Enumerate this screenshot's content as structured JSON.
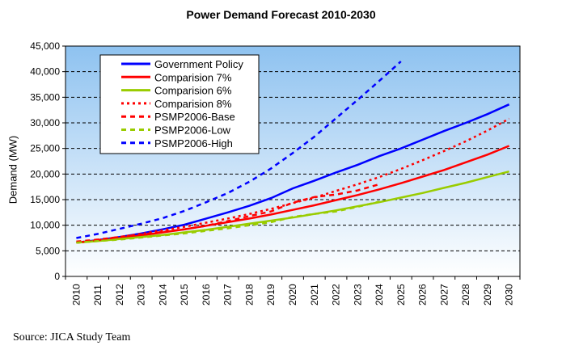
{
  "chart_data": {
    "type": "line",
    "title": "Power Demand Forecast 2010-2030",
    "ylabel": "Demand (MW)",
    "xlabel": "",
    "ylim": [
      0,
      45000
    ],
    "yticks": [
      "0",
      "5,000",
      "10,000",
      "15,000",
      "20,000",
      "25,000",
      "30,000",
      "35,000",
      "40,000",
      "45,000"
    ],
    "x": [
      "2010",
      "2011",
      "2012",
      "2013",
      "2014",
      "2015",
      "2016",
      "2017",
      "2018",
      "2019",
      "2020",
      "2021",
      "2022",
      "2023",
      "2024",
      "2025",
      "2026",
      "2027",
      "2028",
      "2029",
      "2030"
    ],
    "grid": "horizontal dashed",
    "legend_position": "top-left inside plot",
    "series": [
      {
        "name": "Government Policy",
        "color": "#0000ff",
        "style": "solid",
        "values": [
          6600,
          7100,
          7700,
          8400,
          9200,
          10100,
          11300,
          12500,
          13800,
          15300,
          17200,
          18700,
          20300,
          21800,
          23500,
          25000,
          26700,
          28400,
          30000,
          31700,
          33600
        ]
      },
      {
        "name": "Comparision 7%",
        "color": "#ff0000",
        "style": "solid",
        "values": [
          6600,
          7000,
          7500,
          8000,
          8600,
          9200,
          9900,
          10600,
          11300,
          12100,
          13000,
          13900,
          14900,
          15900,
          17000,
          18200,
          19500,
          20800,
          22300,
          23800,
          25500
        ]
      },
      {
        "name": "Comparision 6%",
        "color": "#99cc00",
        "style": "solid",
        "values": [
          6600,
          6900,
          7300,
          7700,
          8100,
          8600,
          9100,
          9700,
          10300,
          10900,
          11500,
          12200,
          12900,
          13700,
          14500,
          15400,
          16300,
          17300,
          18300,
          19400,
          20500
        ]
      },
      {
        "name": "Comparision 8%",
        "color": "#ff0000",
        "style": "dotted",
        "values": [
          6600,
          7100,
          7700,
          8300,
          9000,
          9700,
          10500,
          11300,
          12200,
          13200,
          14300,
          15400,
          16700,
          18000,
          19400,
          21000,
          22700,
          24500,
          26400,
          28500,
          30800
        ]
      },
      {
        "name": "PSMP2006-Base",
        "color": "#ff0000",
        "style": "dashed",
        "values": [
          6800,
          7200,
          7700,
          8200,
          8700,
          9200,
          9900,
          10800,
          11800,
          12700,
          14400,
          15500,
          16000,
          16800,
          18000,
          null,
          null,
          null,
          null,
          null,
          null
        ]
      },
      {
        "name": "PSMP2006-Low",
        "color": "#99cc00",
        "style": "dashed",
        "values": [
          6600,
          6900,
          7200,
          7600,
          8000,
          8400,
          8900,
          9400,
          10000,
          10600,
          11600,
          12200,
          12700,
          13600,
          14600,
          null,
          null,
          null,
          null,
          null,
          null
        ]
      },
      {
        "name": "PSMP2006-High",
        "color": "#0000ff",
        "style": "dashed",
        "values": [
          7500,
          8300,
          9300,
          10300,
          11400,
          12800,
          14500,
          16300,
          18500,
          21100,
          24100,
          27300,
          30900,
          34500,
          38200,
          42000,
          null,
          null,
          null,
          null,
          null
        ]
      }
    ]
  },
  "source": "Source:  JICA Study Team"
}
